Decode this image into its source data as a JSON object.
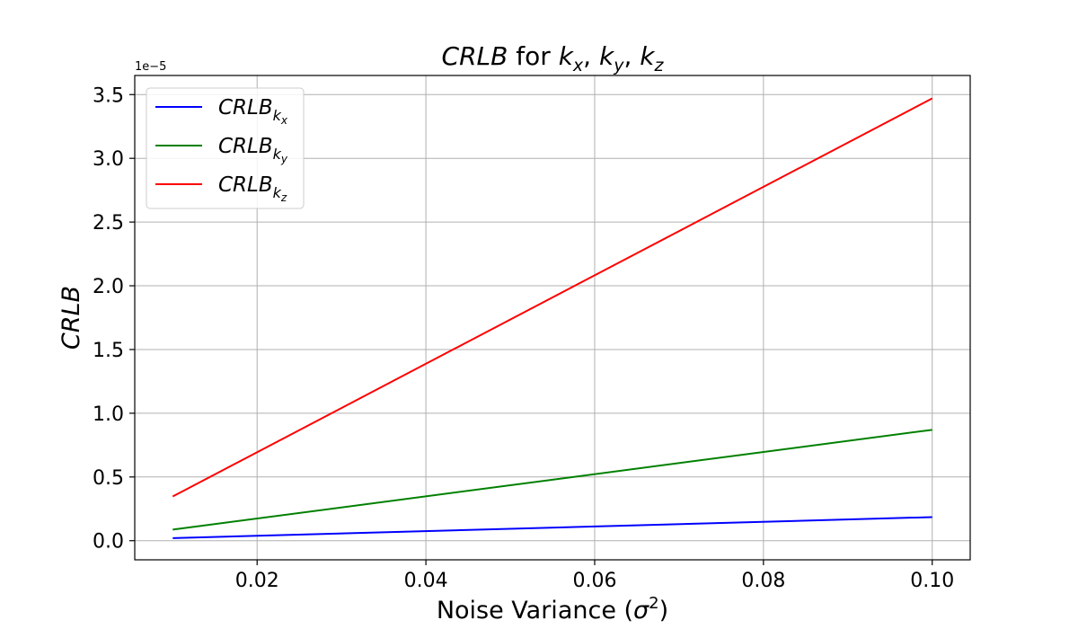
{
  "chart_data": {
    "type": "line",
    "title": "CRLB for kx, ky, kz",
    "xlabel": "Noise Variance (σ2)",
    "ylabel": "CRLB",
    "y_offset_text": "1e−5",
    "xlim": [
      0.0055,
      0.1045
    ],
    "ylim": [
      -0.15,
      3.65
    ],
    "y_scale_factor": 1e-05,
    "xticks": [
      0.02,
      0.04,
      0.06,
      0.08,
      0.1
    ],
    "xtick_labels": [
      "0.02",
      "0.04",
      "0.06",
      "0.08",
      "0.10"
    ],
    "yticks": [
      0.0,
      0.5,
      1.0,
      1.5,
      2.0,
      2.5,
      3.0,
      3.5
    ],
    "ytick_labels": [
      "0.0",
      "0.5",
      "1.0",
      "1.5",
      "2.0",
      "2.5",
      "3.0",
      "3.5"
    ],
    "grid": true,
    "legend_position": "upper-left",
    "x": [
      0.01,
      0.1
    ],
    "series": [
      {
        "name": "CRLBkx",
        "label_base": "CRLB",
        "label_sub": "k",
        "label_subsub": "x",
        "color": "#0000ff",
        "values": [
          0.02,
          0.185
        ]
      },
      {
        "name": "CRLBky",
        "label_base": "CRLB",
        "label_sub": "k",
        "label_subsub": "y",
        "color": "#008000",
        "values": [
          0.087,
          0.87
        ]
      },
      {
        "name": "CRLBkz",
        "label_base": "CRLB",
        "label_sub": "k",
        "label_subsub": "z",
        "color": "#ff0000",
        "values": [
          0.347,
          3.47
        ]
      }
    ]
  }
}
